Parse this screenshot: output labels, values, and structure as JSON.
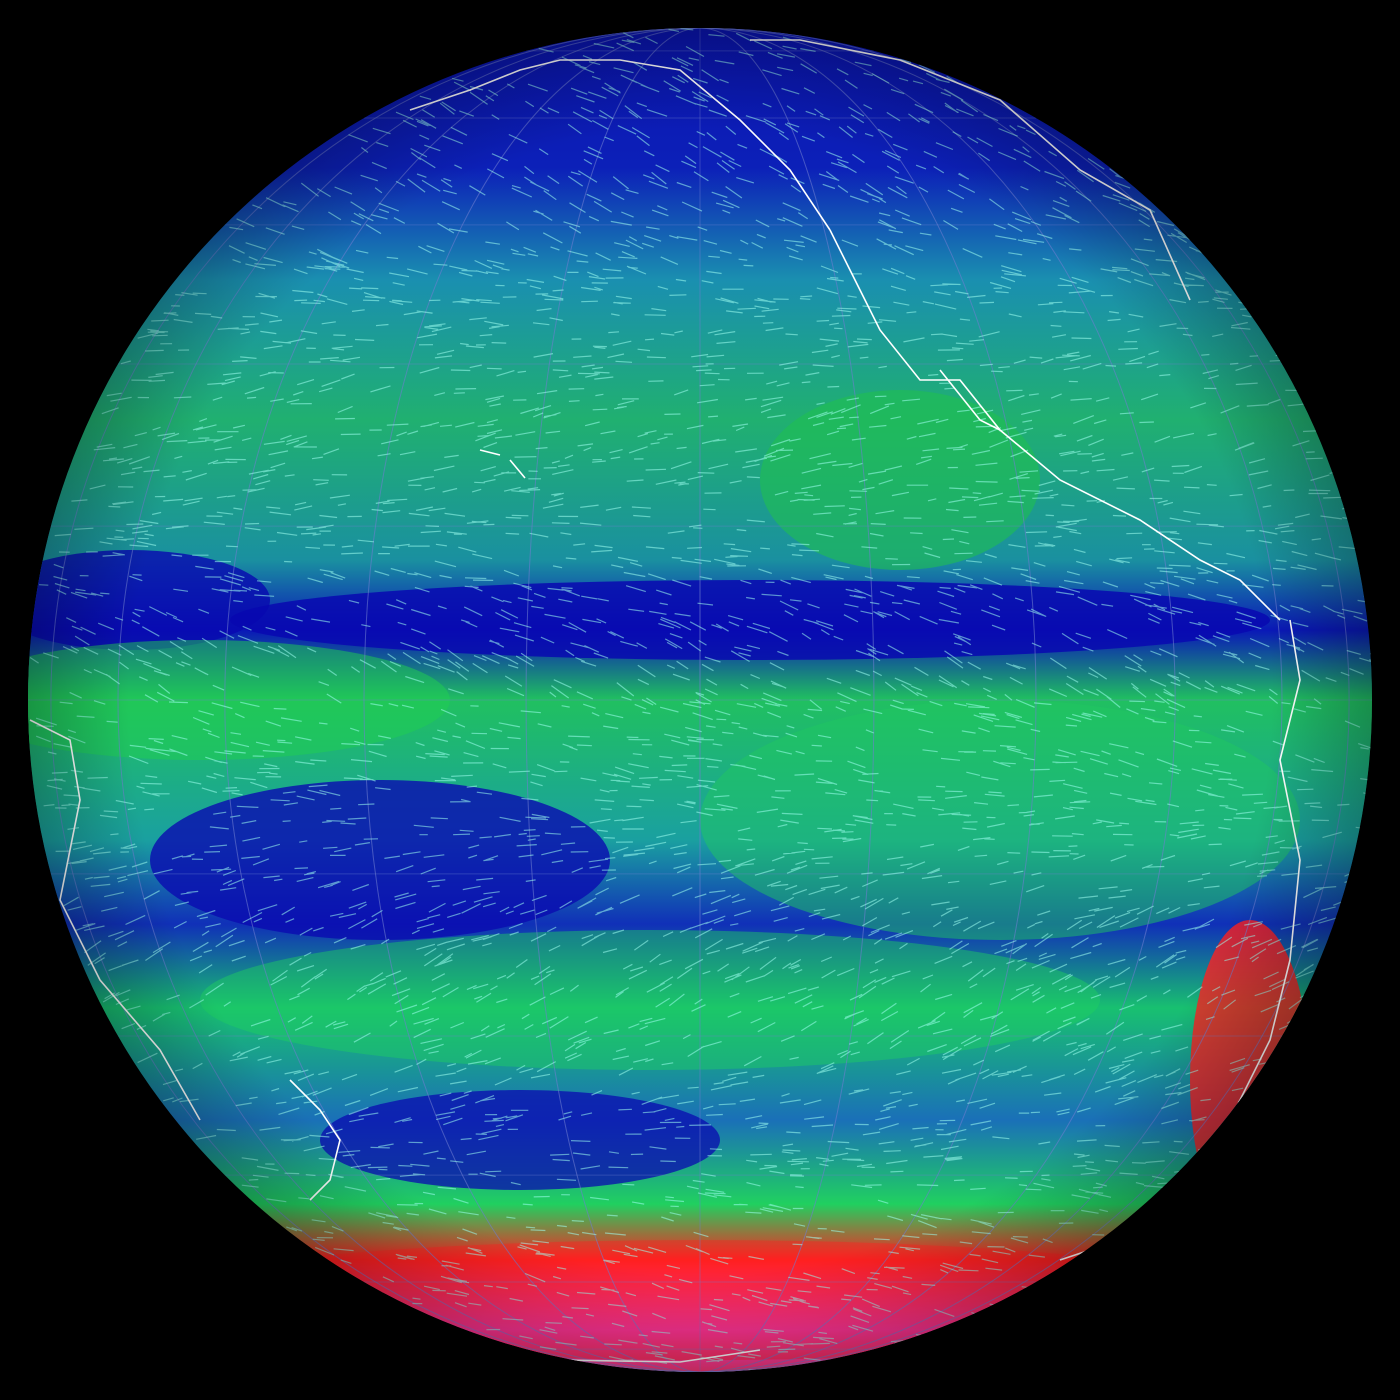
{
  "map": {
    "projection": "orthographic",
    "background_color": "#000000",
    "coastline_color": "#ffffff",
    "graticule_color": "#6f7fd0",
    "palette": {
      "calm": "#0a10b0",
      "light": "#1a7fb8",
      "moderate": "#18d850",
      "strong": "#ff1a1a",
      "very_strong": "#ff40e0"
    },
    "streak_color": "#9ffff0"
  }
}
